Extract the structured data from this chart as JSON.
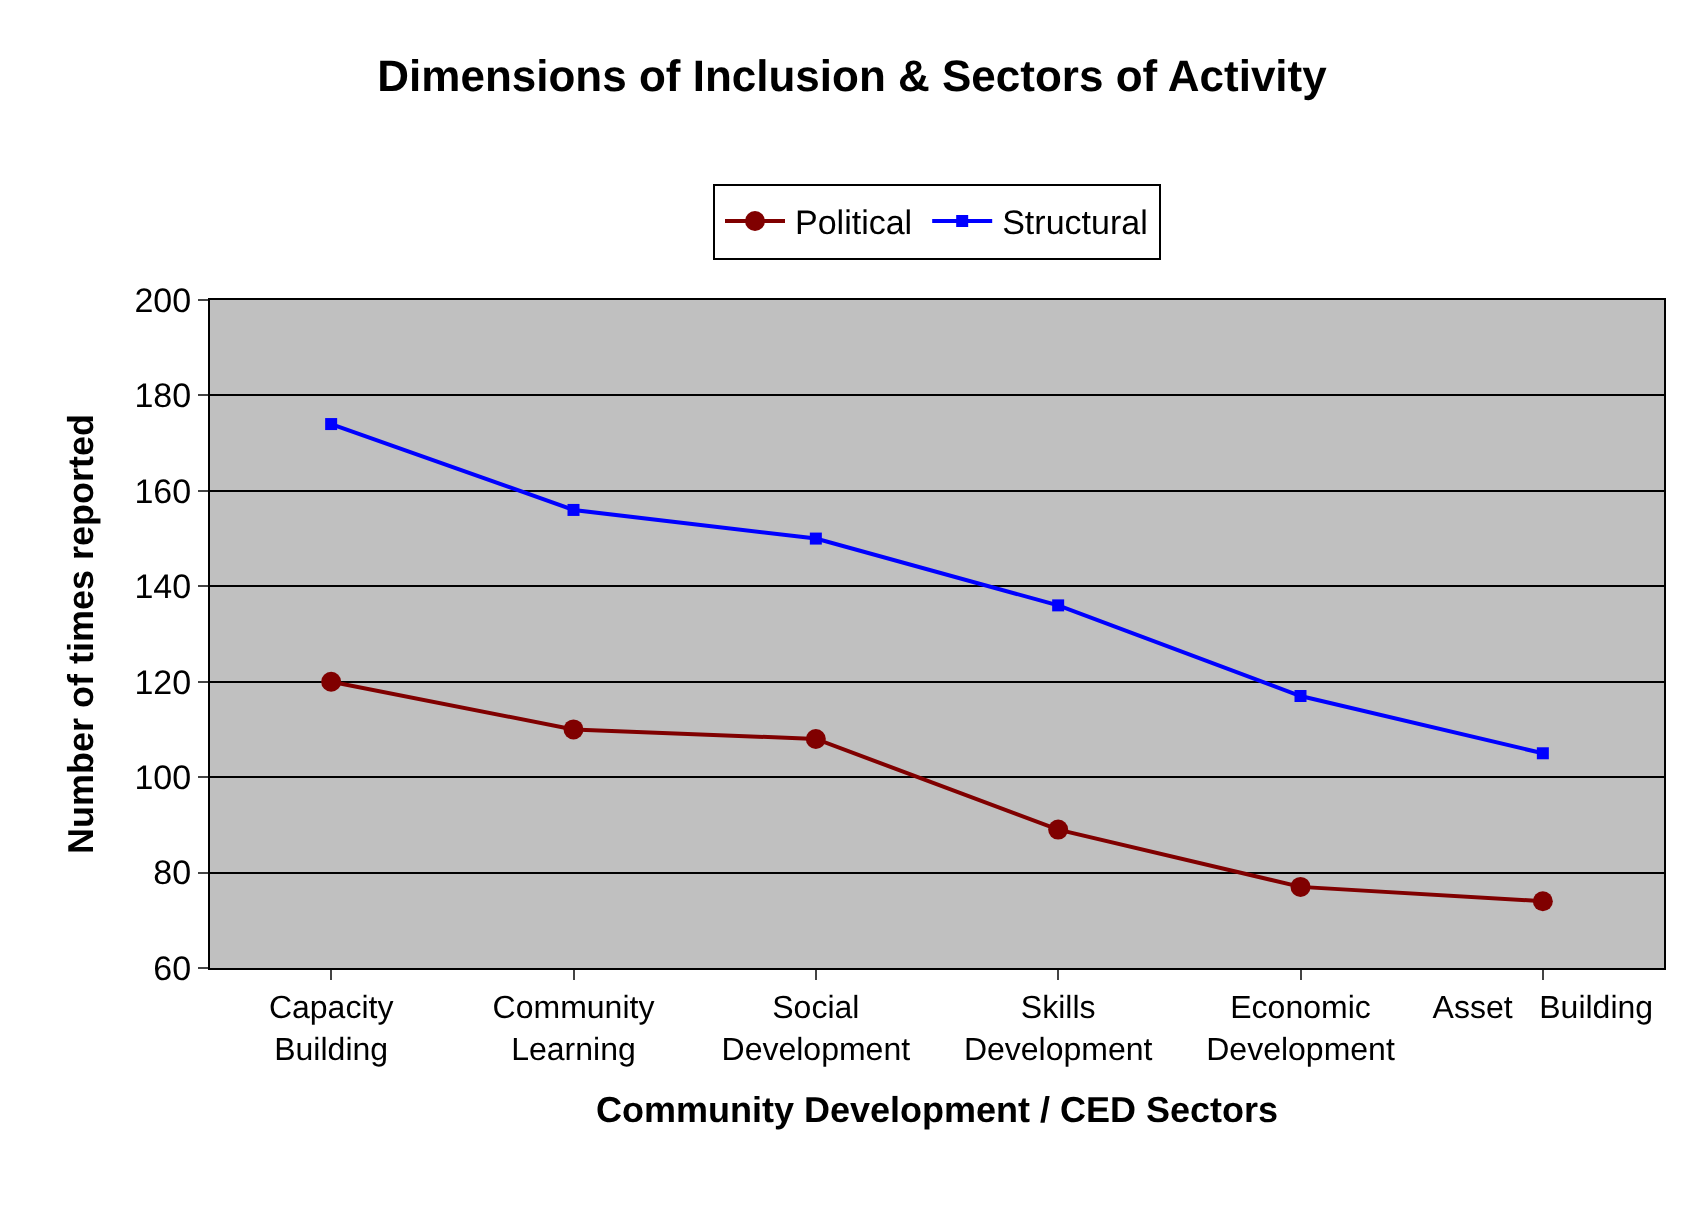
{
  "chart_data": {
    "type": "line",
    "title": "Dimensions of Inclusion & Sectors of Activity",
    "xlabel": "Community Development / CED Sectors",
    "ylabel": "Number of times reported",
    "categories": [
      "Capacity\nBuilding",
      "Community\nLearning",
      "Social\nDevelopment",
      "Skills\nDevelopment",
      "Economic\nDevelopment",
      "Asset   Building"
    ],
    "series": [
      {
        "name": "Political",
        "color": "#800000",
        "marker": "circle",
        "values": [
          120,
          110,
          108,
          89,
          77,
          74
        ]
      },
      {
        "name": "Structural",
        "color": "#0000ff",
        "marker": "square",
        "values": [
          174,
          156,
          150,
          136,
          117,
          105
        ]
      }
    ],
    "ylim": [
      60,
      200
    ],
    "yticks": [
      60,
      80,
      100,
      120,
      140,
      160,
      180,
      200
    ],
    "grid": "y",
    "legend": "top"
  }
}
